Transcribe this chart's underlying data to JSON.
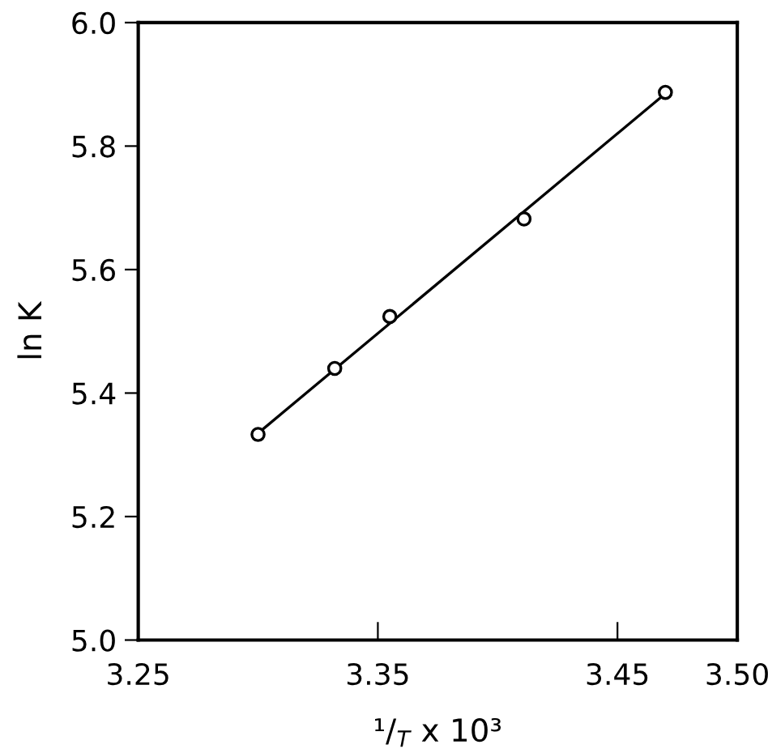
{
  "chart_data": {
    "type": "scatter",
    "xlabel": "¹/$_{T}$ x 10³",
    "ylabel": "ln K",
    "xlim": [
      3.25,
      3.5
    ],
    "xticks": [
      3.25,
      3.35,
      3.45,
      {
        "value": 3.5,
        "label": "3.50"
      }
    ],
    "ylim": [
      5.0,
      6.0
    ],
    "yticks": [
      {
        "value": 5,
        "label": "5.0"
      },
      5.2,
      5.4,
      5.6,
      5.8,
      {
        "value": 6,
        "label": "6.0"
      }
    ],
    "grid": false,
    "series": [
      {
        "color": "#000000",
        "marker": "circle",
        "x": [
          3.3,
          3.332,
          3.355,
          3.411,
          3.47
        ],
        "values": [
          5.333,
          5.44,
          5.524,
          5.682,
          5.887
        ]
      },
      {
        "type": "line",
        "color": "#000000",
        "marker": "none",
        "line_style": "solid",
        "x": [
          3.3,
          3.47
        ],
        "values": [
          5.335,
          5.885
        ]
      }
    ]
  }
}
